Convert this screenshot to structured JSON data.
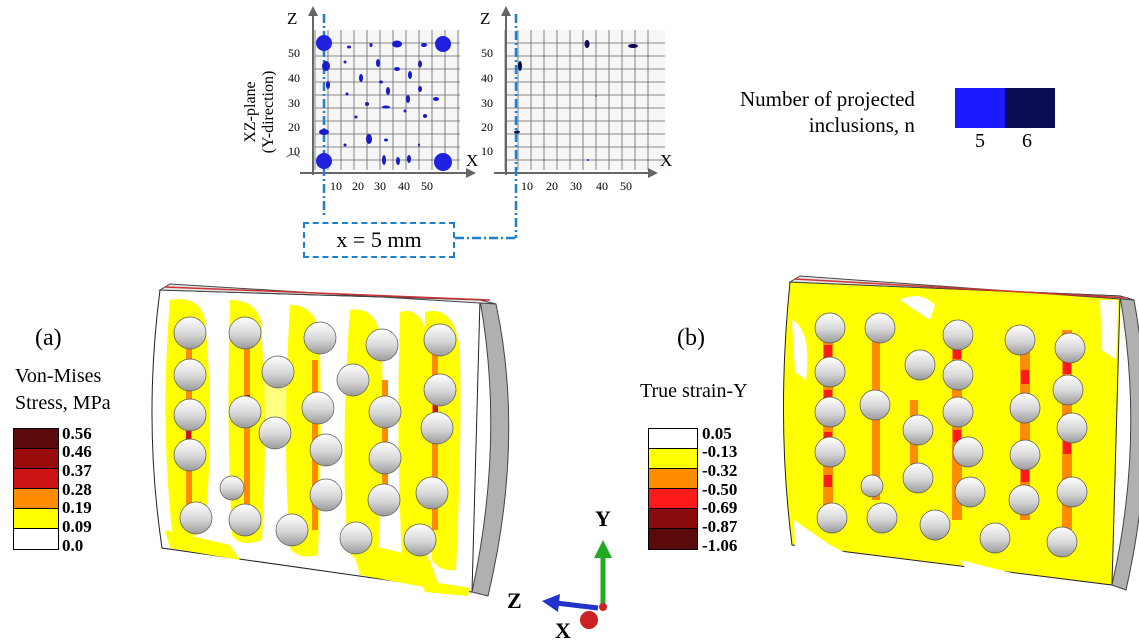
{
  "top": {
    "plane_label_line1": "XZ-plane",
    "plane_label_line2": "(Y-direction)",
    "axis_z": "Z",
    "axis_x": "X",
    "left_x_ticks": [
      "10",
      "20",
      "30",
      "40",
      "50"
    ],
    "left_z_ticks": [
      "50",
      "40",
      "30",
      "20",
      "10"
    ],
    "right_x_ticks": [
      "10",
      "20",
      "30",
      "40",
      "50"
    ],
    "right_z_ticks": [
      "50",
      "40",
      "30",
      "20",
      "10"
    ],
    "slice_label": "x  = 5 mm"
  },
  "inclusion_legend": {
    "title_line1": "Number of projected",
    "title_line2": "inclusions, n",
    "items": [
      {
        "value": "5",
        "color": "#1a1aff"
      },
      {
        "value": "6",
        "color": "#0a0a55"
      }
    ]
  },
  "panel_a": {
    "label": "(a)",
    "legend_title_line1": "Von-Mises",
    "legend_title_line2": "Stress, MPa",
    "levels": [
      {
        "value": "0.56",
        "color": "#5a0a0a"
      },
      {
        "value": "0.46",
        "color": "#9a0c0c"
      },
      {
        "value": "0.37",
        "color": "#cc1414"
      },
      {
        "value": "0.28",
        "color": "#ff8c00"
      },
      {
        "value": "0.19",
        "color": "#ffff00"
      },
      {
        "value": "0.09",
        "color": "#ffffff"
      },
      {
        "value": "0.0",
        "color": "#ffffff"
      }
    ]
  },
  "panel_b": {
    "label": "(b)",
    "legend_title": "True strain-Y",
    "levels": [
      {
        "value": "0.05",
        "color": "#ffffff"
      },
      {
        "value": "-0.13",
        "color": "#ffff00"
      },
      {
        "value": "-0.32",
        "color": "#ff8c00"
      },
      {
        "value": "-0.50",
        "color": "#ff1a1a"
      },
      {
        "value": "-0.69",
        "color": "#cc1414"
      },
      {
        "value": "-0.87",
        "color": "#8a0c0c"
      },
      {
        "value": "-1.06",
        "color": "#5a0a0a"
      }
    ]
  },
  "triad": {
    "y": "Y",
    "z": "Z",
    "x": "X",
    "colors": {
      "y": "#22aa22",
      "z": "#2233cc",
      "x": "#cc2222"
    }
  }
}
